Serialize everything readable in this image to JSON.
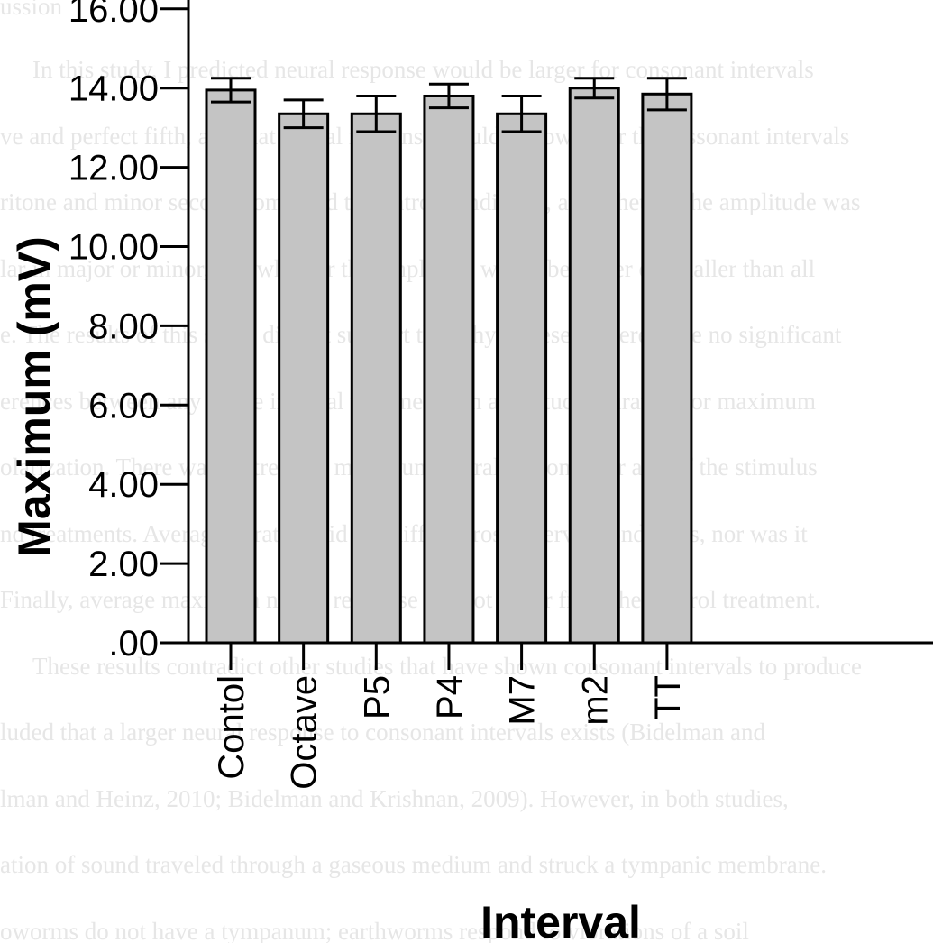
{
  "background_text": [
    "ussion",
    "In this study, I predicted neural response would be larger for consonant intervals",
    "ve and perfect fifth, and that neural response would be lower for the dissonant intervals",
    "ritone and minor second compared to control conditions, and whether the amplitude was",
    "lar in major or minor, and whether the amplitude would be larger or smaller than all",
    "e. The results of this study did not support these hypotheses. There were no significant",
    "erences between any of the interval treatments on amplitude, duration, or maximum",
    "olarization. There was no trend in maximum neural response for any of the stimulus",
    "nd treatments. Average duration did not differ across interval conditions, nor was it",
    "Finally, average maximum neural response did not differ from the control treatment.",
    "These results contradict other studies that have shown consonant intervals to produce",
    "luded that a larger neural response to consonant intervals exists (Bidelman and",
    "lman and Heinz, 2010; Bidelman and Krishnan, 2009). However, in both studies,",
    "ation of sound traveled through a gaseous medium and struck a tympanic membrane.",
    "oworms do not have a tympanum; earthworms respond to vibrations of a soil"
  ],
  "chart_data": {
    "type": "bar",
    "xlabel": "Interval",
    "ylabel": "Maximum (mV)",
    "categories": [
      "Contol",
      "Octave",
      "P5",
      "P4",
      "M7",
      "m2",
      "TT"
    ],
    "values": [
      13.95,
      13.35,
      13.35,
      13.8,
      13.35,
      14.0,
      13.85
    ],
    "error": [
      0.3,
      0.35,
      0.45,
      0.3,
      0.45,
      0.25,
      0.4
    ],
    "ylim": [
      0,
      16.5
    ],
    "yticks": [
      ".00",
      "2.00",
      "4.00",
      "6.00",
      "8.00",
      "10.00",
      "12.00",
      "14.00",
      "16.00"
    ],
    "ytick_values": [
      0,
      2,
      4,
      6,
      8,
      10,
      12,
      14,
      16
    ],
    "bar_color": "#c4c4c4",
    "edge_color": "#000000",
    "grid": false,
    "legend": false
  }
}
